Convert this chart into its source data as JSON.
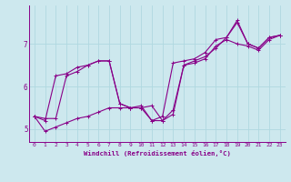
{
  "xlabel": "Windchill (Refroidissement éolien,°C)",
  "bg_color": "#cde8ee",
  "line_color": "#880088",
  "grid_color": "#b0d8e0",
  "xlim": [
    -0.5,
    23.5
  ],
  "ylim": [
    4.7,
    7.9
  ],
  "xticks": [
    0,
    1,
    2,
    3,
    4,
    5,
    6,
    7,
    8,
    9,
    10,
    11,
    12,
    13,
    14,
    15,
    16,
    17,
    18,
    19,
    20,
    21,
    22,
    23
  ],
  "yticks": [
    5,
    6,
    7
  ],
  "series": [
    [
      5.3,
      5.25,
      5.25,
      6.25,
      6.35,
      6.5,
      6.6,
      6.6,
      5.6,
      5.5,
      5.5,
      5.55,
      5.2,
      5.45,
      6.5,
      6.6,
      6.7,
      6.9,
      7.15,
      7.55,
      7.0,
      6.9,
      7.15,
      7.2
    ],
    [
      5.3,
      5.2,
      6.25,
      6.3,
      6.45,
      6.5,
      6.6,
      6.6,
      5.6,
      5.5,
      5.5,
      5.2,
      5.3,
      6.55,
      6.6,
      6.65,
      6.8,
      7.1,
      7.15,
      7.5,
      7.0,
      6.9,
      7.15,
      7.2
    ],
    [
      5.3,
      4.95,
      5.05,
      5.15,
      5.25,
      5.3,
      5.4,
      5.5,
      5.5,
      5.5,
      5.55,
      5.2,
      5.2,
      5.35,
      6.5,
      6.55,
      6.65,
      6.95,
      7.1,
      7.0,
      6.95,
      6.85,
      7.1,
      7.2
    ]
  ]
}
